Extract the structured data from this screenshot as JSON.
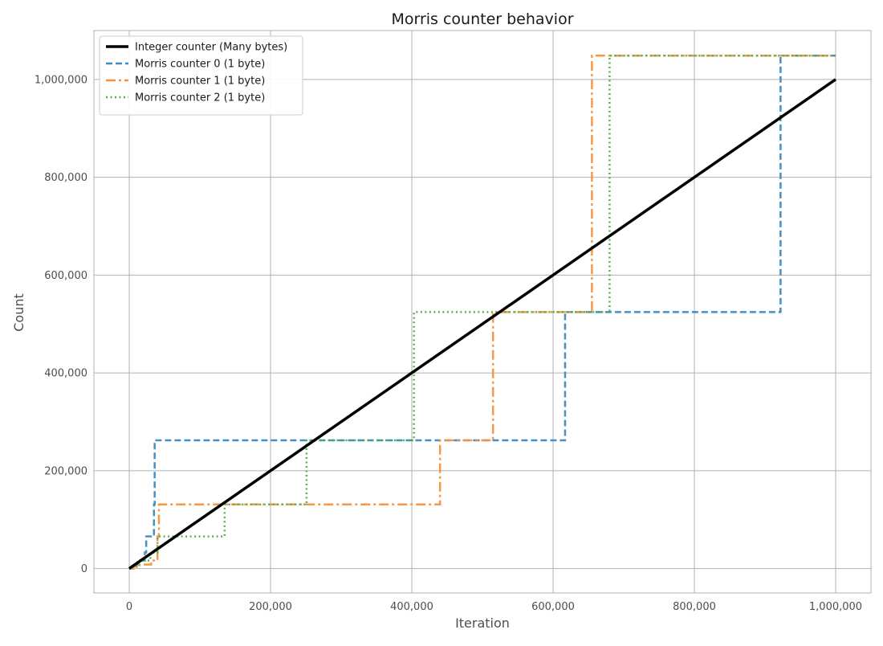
{
  "chart_data": {
    "type": "line",
    "title": "Morris counter behavior",
    "xlabel": "Iteration",
    "ylabel": "Count",
    "xlim": [
      -50000,
      1050000
    ],
    "ylim": [
      -50000,
      1100000
    ],
    "xticks": [
      0,
      200000,
      400000,
      600000,
      800000,
      1000000
    ],
    "xtick_labels": [
      "0",
      "200,000",
      "400,000",
      "600,000",
      "800,000",
      "1,000,000"
    ],
    "yticks": [
      0,
      200000,
      400000,
      600000,
      800000,
      1000000
    ],
    "ytick_labels": [
      "0",
      "200,000",
      "400,000",
      "600,000",
      "800,000",
      "1,000,000"
    ],
    "grid": true,
    "legend_position": "top-left",
    "series": [
      {
        "name": "Integer counter (Many bytes)",
        "color": "#000000",
        "style": "solid",
        "step": false,
        "points": [
          [
            0,
            0
          ],
          [
            1000000,
            1000000
          ]
        ]
      },
      {
        "name": "Morris counter 0 (1 byte)",
        "color": "#3b8bc2",
        "style": "dashed",
        "step": true,
        "points": [
          [
            0,
            0
          ],
          [
            4000,
            4095
          ],
          [
            8000,
            8191
          ],
          [
            12000,
            16383
          ],
          [
            22000,
            32767
          ],
          [
            24000,
            65535
          ],
          [
            35000,
            131071
          ],
          [
            36000,
            262143
          ],
          [
            617000,
            524287
          ],
          [
            922000,
            1048575
          ],
          [
            1000000,
            1048575
          ]
        ]
      },
      {
        "name": "Morris counter 1 (1 byte)",
        "color": "#f5933d",
        "style": "dashdot",
        "step": true,
        "points": [
          [
            0,
            0
          ],
          [
            6000,
            4095
          ],
          [
            15000,
            8191
          ],
          [
            31000,
            16383
          ],
          [
            40000,
            65535
          ],
          [
            42000,
            131071
          ],
          [
            440000,
            262143
          ],
          [
            515000,
            524287
          ],
          [
            655000,
            1048575
          ],
          [
            1000000,
            1048575
          ]
        ]
      },
      {
        "name": "Morris counter 2 (1 byte)",
        "color": "#4daf4a",
        "style": "dotted",
        "step": true,
        "points": [
          [
            0,
            0
          ],
          [
            5000,
            4095
          ],
          [
            13000,
            16383
          ],
          [
            30000,
            32767
          ],
          [
            40000,
            65535
          ],
          [
            135000,
            131071
          ],
          [
            251000,
            262143
          ],
          [
            403000,
            524287
          ],
          [
            680000,
            1048575
          ],
          [
            1000000,
            1048575
          ]
        ]
      }
    ]
  }
}
